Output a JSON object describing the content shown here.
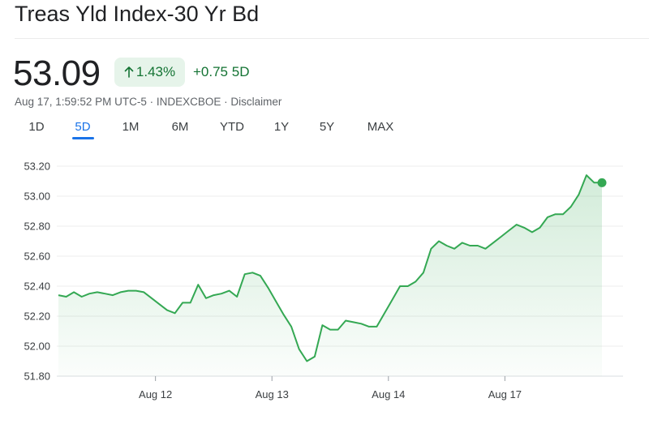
{
  "header": {
    "title": "Treas Yld Index-30 Yr Bd"
  },
  "quote": {
    "price": "53.09",
    "change_percent": "1.43%",
    "change_abs": "+0.75 5D",
    "meta": "Aug 17, 1:59:52 PM UTC-5 · INDEXCBOE · Disclaimer"
  },
  "tabs": [
    {
      "label": "1D"
    },
    {
      "label": "5D"
    },
    {
      "label": "1M"
    },
    {
      "label": "6M"
    },
    {
      "label": "YTD"
    },
    {
      "label": "1Y"
    },
    {
      "label": "5Y"
    },
    {
      "label": "MAX"
    }
  ],
  "active_tab": "5D",
  "colors": {
    "line": "#34a853",
    "positive": "#137333",
    "accent": "#1a73e8"
  },
  "chart_data": {
    "type": "line",
    "xlabel": "",
    "ylabel": "",
    "ylim": [
      51.8,
      53.2
    ],
    "yticks": [
      "53.20",
      "53.00",
      "52.80",
      "52.60",
      "52.40",
      "52.20",
      "52.00",
      "51.80"
    ],
    "ytick_values": [
      53.2,
      53.0,
      52.8,
      52.6,
      52.4,
      52.2,
      52.0,
      51.8
    ],
    "xticks": [
      {
        "label": "Aug 12",
        "x": 12.5
      },
      {
        "label": "Aug 13",
        "x": 27.5
      },
      {
        "label": "Aug 14",
        "x": 42.5
      },
      {
        "label": "Aug 17",
        "x": 57.5
      }
    ],
    "xlim": [
      0,
      73
    ],
    "grid": true,
    "series": [
      {
        "values": [
          [
            0,
            52.34
          ],
          [
            1,
            52.33
          ],
          [
            2,
            52.36
          ],
          [
            3,
            52.33
          ],
          [
            4,
            52.35
          ],
          [
            5,
            52.36
          ],
          [
            6,
            52.35
          ],
          [
            7,
            52.34
          ],
          [
            8,
            52.36
          ],
          [
            9,
            52.37
          ],
          [
            10,
            52.37
          ],
          [
            11,
            52.36
          ],
          [
            12,
            52.32
          ],
          [
            13,
            52.28
          ],
          [
            14,
            52.24
          ],
          [
            15,
            52.22
          ],
          [
            16,
            52.29
          ],
          [
            17,
            52.29
          ],
          [
            18,
            52.41
          ],
          [
            19,
            52.32
          ],
          [
            20,
            52.34
          ],
          [
            21,
            52.35
          ],
          [
            22,
            52.37
          ],
          [
            23,
            52.33
          ],
          [
            24,
            52.48
          ],
          [
            25,
            52.49
          ],
          [
            26,
            52.47
          ],
          [
            27,
            52.39
          ],
          [
            28,
            52.3
          ],
          [
            29,
            52.21
          ],
          [
            30,
            52.13
          ],
          [
            31,
            51.98
          ],
          [
            32,
            51.9
          ],
          [
            33,
            51.93
          ],
          [
            34,
            52.14
          ],
          [
            35,
            52.11
          ],
          [
            36,
            52.11
          ],
          [
            37,
            52.17
          ],
          [
            38,
            52.16
          ],
          [
            39,
            52.15
          ],
          [
            40,
            52.13
          ],
          [
            41,
            52.13
          ],
          [
            42,
            52.22
          ],
          [
            43,
            52.31
          ],
          [
            44,
            52.4
          ],
          [
            45,
            52.4
          ],
          [
            46,
            52.43
          ],
          [
            47,
            52.49
          ],
          [
            48,
            52.65
          ],
          [
            49,
            52.7
          ],
          [
            50,
            52.67
          ],
          [
            51,
            52.65
          ],
          [
            52,
            52.69
          ],
          [
            53,
            52.67
          ],
          [
            54,
            52.67
          ],
          [
            55,
            52.65
          ],
          [
            56,
            52.69
          ],
          [
            57,
            52.73
          ],
          [
            58,
            52.77
          ],
          [
            59,
            52.81
          ],
          [
            60,
            52.79
          ],
          [
            61,
            52.76
          ],
          [
            62,
            52.79
          ],
          [
            63,
            52.86
          ],
          [
            64,
            52.88
          ],
          [
            65,
            52.88
          ],
          [
            66,
            52.93
          ],
          [
            67,
            53.01
          ],
          [
            68,
            53.14
          ],
          [
            69,
            53.09
          ],
          [
            70,
            53.09
          ]
        ]
      }
    ],
    "last_point_marker": true
  }
}
